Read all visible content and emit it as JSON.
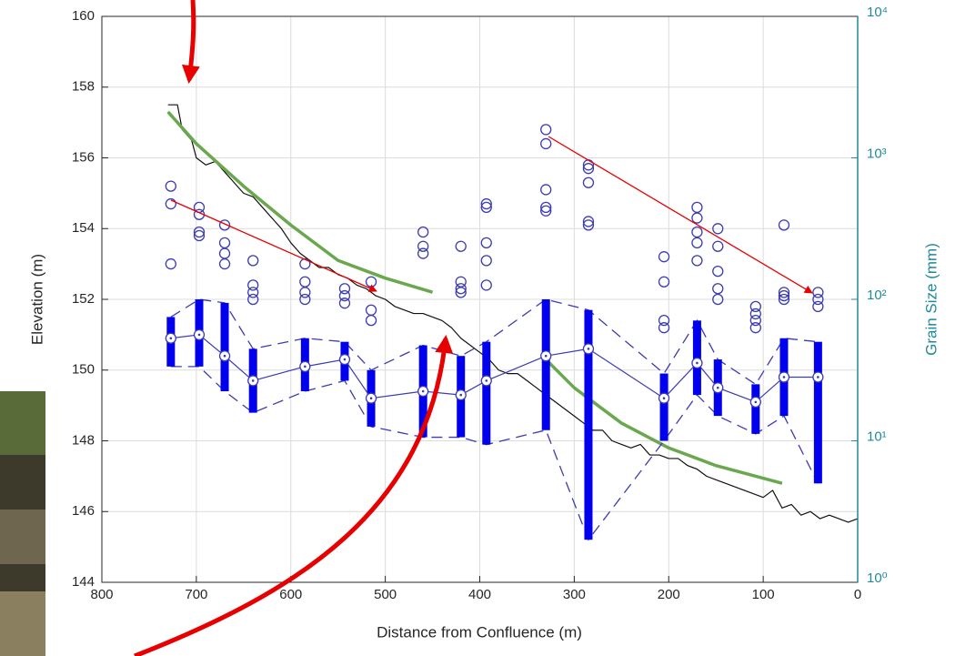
{
  "chart_data": {
    "type": "line",
    "x_label": "Distance from Confluence (m)",
    "y_label": "Elevation (m)",
    "y2_label": "Grain Size (mm)",
    "xlim": [
      800,
      0
    ],
    "xticks": [
      800,
      700,
      600,
      500,
      400,
      300,
      200,
      100,
      0
    ],
    "ylim": [
      144,
      160
    ],
    "yticks": [
      144,
      146,
      148,
      150,
      152,
      154,
      156,
      158,
      160
    ],
    "y2lim": [
      1,
      10000
    ],
    "y2_log": true,
    "y2_color": "#1f8a9a",
    "y2ticks": [
      {
        "value": 1,
        "label": "10⁰"
      },
      {
        "value": 10,
        "label": "10¹"
      },
      {
        "value": 100,
        "label": "10²"
      },
      {
        "value": 1000,
        "label": "10³"
      },
      {
        "value": 10000,
        "label": "10⁴"
      }
    ],
    "grid": true,
    "series": [
      {
        "style": "line",
        "axis": "y",
        "color": "#111111",
        "x": [
          730,
          720,
          715,
          705,
          700,
          690,
          680,
          670,
          660,
          650,
          640,
          630,
          620,
          610,
          600,
          590,
          580,
          570,
          560,
          550,
          540,
          530,
          520,
          510,
          500,
          490,
          480,
          470,
          460,
          450,
          440,
          430,
          420,
          410,
          400,
          390,
          380,
          370,
          360,
          350,
          340,
          330,
          320,
          310,
          300,
          290,
          280,
          270,
          260,
          250,
          240,
          230,
          220,
          210,
          200,
          190,
          180,
          170,
          160,
          150,
          140,
          130,
          120,
          110,
          100,
          90,
          80,
          70,
          60,
          50,
          40,
          30,
          20,
          10,
          0
        ],
        "values": [
          157.5,
          157.5,
          156.8,
          156.5,
          156,
          155.8,
          155.9,
          155.6,
          155.3,
          155,
          154.9,
          154.6,
          154.3,
          154,
          153.6,
          153.3,
          153.1,
          152.9,
          152.9,
          152.7,
          152.6,
          152.4,
          152.3,
          152.1,
          152,
          151.8,
          151.7,
          151.6,
          151.6,
          151.5,
          151.4,
          151.2,
          150.9,
          150.7,
          150.5,
          150.3,
          150,
          149.9,
          149.9,
          149.7,
          149.5,
          149.3,
          149.1,
          148.9,
          148.7,
          148.5,
          148.3,
          148.3,
          148,
          147.9,
          147.8,
          147.9,
          147.6,
          147.6,
          147.5,
          147.5,
          147.3,
          147.2,
          147,
          146.9,
          146.8,
          146.7,
          146.6,
          146.5,
          146.4,
          146.6,
          146.1,
          146.2,
          145.9,
          146,
          145.8,
          145.9,
          145.8,
          145.7,
          145.8
        ]
      },
      {
        "style": "line",
        "axis": "y",
        "color": "#6aa84f",
        "width": 3.5,
        "x": [
          730,
          700,
          650,
          600,
          550,
          500,
          450
        ],
        "values": [
          157.3,
          156.4,
          155.2,
          154.1,
          153.1,
          152.6,
          152.2
        ]
      },
      {
        "style": "line",
        "axis": "y",
        "color": "#6aa84f",
        "width": 3.5,
        "x": [
          330,
          300,
          250,
          200,
          150,
          80
        ],
        "values": [
          150.3,
          149.5,
          148.5,
          147.8,
          147.3,
          146.8
        ]
      },
      {
        "style": "markers",
        "axis": "y2",
        "color": "#3b3bb3",
        "x": [
          727,
          727,
          727,
          697,
          697,
          697,
          697,
          670,
          670,
          670,
          670,
          640,
          640,
          640,
          640,
          585,
          585,
          585,
          585,
          543,
          543,
          543,
          515,
          515,
          515,
          460,
          460,
          460,
          420,
          420,
          420,
          420,
          393,
          393,
          393,
          393,
          393,
          330,
          330,
          330,
          330,
          330,
          285,
          285,
          285,
          285,
          285,
          205,
          205,
          205,
          205,
          170,
          170,
          170,
          170,
          170,
          148,
          148,
          148,
          148,
          148,
          108,
          108,
          108,
          108,
          78,
          78,
          78,
          78,
          42,
          42,
          42
        ],
        "values": [
          631,
          473,
          178,
          447,
          398,
          299,
          282,
          335,
          251,
          211,
          178,
          188,
          126,
          112,
          100,
          178,
          133,
          112,
          100,
          119,
          106,
          94,
          133,
          84,
          71,
          299,
          237,
          211,
          237,
          133,
          119,
          112,
          473,
          447,
          251,
          188,
          126,
          1585,
          1259,
          596,
          447,
          422,
          891,
          841,
          668,
          355,
          335,
          200,
          133,
          71,
          63,
          447,
          376,
          299,
          251,
          188,
          316,
          237,
          158,
          119,
          100,
          89,
          79,
          71,
          63,
          335,
          112,
          106,
          100,
          112,
          100,
          89
        ]
      },
      {
        "style": "range",
        "axis": "y2",
        "color": "#3b3bb3",
        "bar_color": "#0000ee",
        "x": [
          727,
          697,
          670,
          640,
          585,
          543,
          515,
          460,
          420,
          393,
          330,
          285,
          205,
          170,
          148,
          108,
          78,
          42
        ],
        "values": [
          53.1,
          56.2,
          39.8,
          26.6,
          33.5,
          37.6,
          20,
          22.4,
          21.1,
          26.6,
          39.8,
          44.7,
          20,
          35.5,
          23.7,
          18.8,
          28.2,
          28.2
        ],
        "upper": [
          75,
          100,
          94.4,
          44.7,
          53.1,
          50.1,
          31.6,
          47.3,
          39.8,
          50.1,
          100,
          84.1,
          29.9,
          70.8,
          37.6,
          25.1,
          53.1,
          50.1
        ],
        "lower": [
          33.5,
          33.5,
          22.4,
          15.8,
          22.4,
          26.6,
          12.6,
          10.6,
          10.6,
          9.4,
          11.9,
          2,
          10,
          21.1,
          15,
          11.2,
          15,
          5
        ]
      }
    ]
  }
}
